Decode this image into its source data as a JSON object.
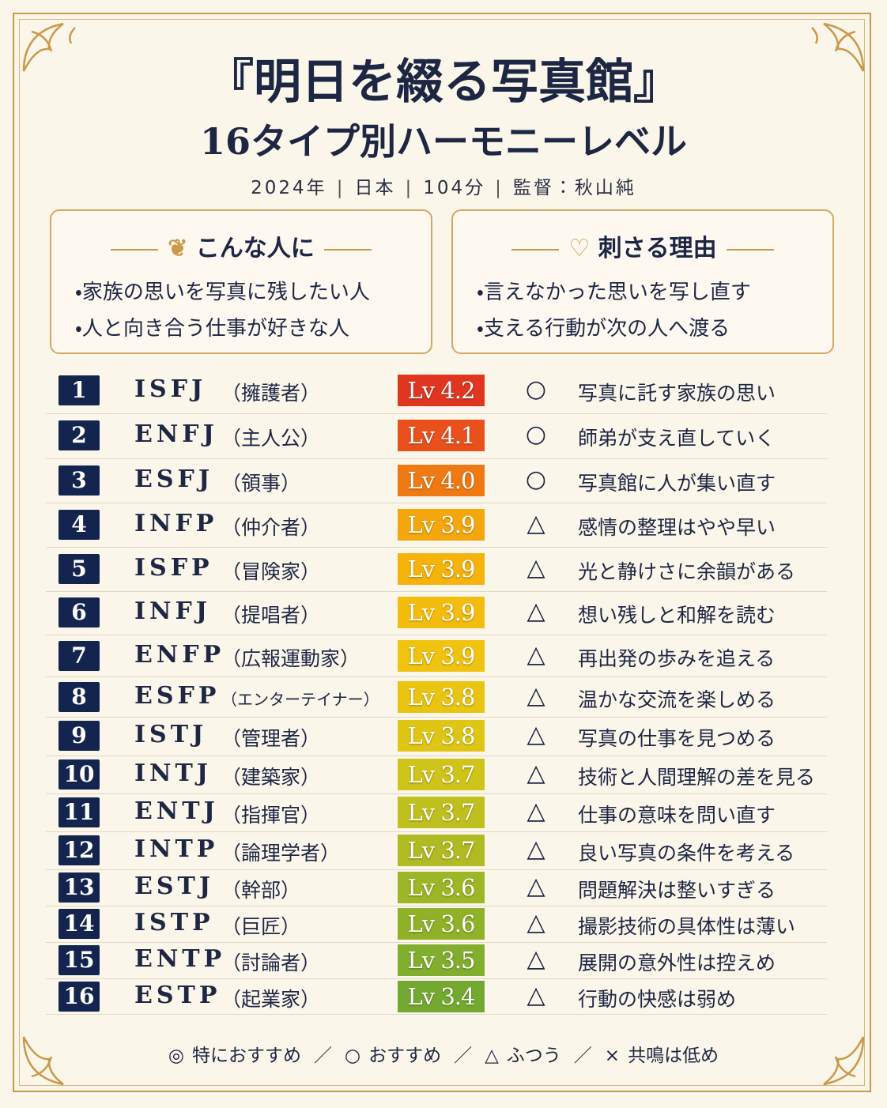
{
  "header": {
    "title": "『明日を綴る写真館』",
    "subtitle": "16タイプ別ハーモニーレベル",
    "meta": [
      "2024年",
      "日本",
      "104分",
      "監督：秋山純"
    ]
  },
  "boxes": [
    {
      "heading": "こんな人に",
      "items": [
        "家族の思いを写真に残したい人",
        "人と向き合う仕事が好きな人"
      ]
    },
    {
      "heading": "刺さる理由",
      "items": [
        "言えなかった思いを写し直す",
        "支える行動が次の人へ渡る"
      ]
    }
  ],
  "table": {
    "rows": [
      {
        "rank": 1,
        "type": "ISFJ",
        "role": "（擁護者）",
        "level": "Lv 4.2",
        "color": "#e0361f",
        "mark": "○",
        "comment": "写真に託す家族の思い"
      },
      {
        "rank": 2,
        "type": "ENFJ",
        "role": "（主人公）",
        "level": "Lv 4.1",
        "color": "#e9501c",
        "mark": "○",
        "comment": "師弟が支え直していく"
      },
      {
        "rank": 3,
        "type": "ESFJ",
        "role": "（領事）",
        "level": "Lv 4.0",
        "color": "#ef7a13",
        "mark": "○",
        "comment": "写真館に人が集い直す"
      },
      {
        "rank": 4,
        "type": "INFP",
        "role": "（仲介者）",
        "level": "Lv 3.9",
        "color": "#f4a70c",
        "mark": "△",
        "comment": "感情の整理はやや早い"
      },
      {
        "rank": 5,
        "type": "ISFP",
        "role": "（冒険家）",
        "level": "Lv 3.9",
        "color": "#f5b30b",
        "mark": "△",
        "comment": "光と静けさに余韻がある"
      },
      {
        "rank": 6,
        "type": "INFJ",
        "role": "（提唱者）",
        "level": "Lv 3.9",
        "color": "#f4bd0d",
        "mark": "△",
        "comment": "想い残しと和解を読む"
      },
      {
        "rank": 7,
        "type": "ENFP",
        "role": "（広報運動家）",
        "level": "Lv 3.9",
        "color": "#f0c30f",
        "mark": "△",
        "comment": "再出発の歩みを追える"
      },
      {
        "rank": 8,
        "type": "ESFP",
        "role": "（エンターテイナー）",
        "level": "Lv 3.8",
        "color": "#e9c512",
        "mark": "△",
        "comment": "温かな交流を楽しめる"
      },
      {
        "rank": 9,
        "type": "ISTJ",
        "role": "（管理者）",
        "level": "Lv 3.8",
        "color": "#dfc615",
        "mark": "△",
        "comment": "写真の仕事を見つめる"
      },
      {
        "rank": 10,
        "type": "INTJ",
        "role": "（建築家）",
        "level": "Lv 3.7",
        "color": "#cfc419",
        "mark": "△",
        "comment": "技術と人間理解の差を見る"
      },
      {
        "rank": 11,
        "type": "ENTJ",
        "role": "（指揮官）",
        "level": "Lv 3.7",
        "color": "#bfc01d",
        "mark": "△",
        "comment": "仕事の意味を問い直す"
      },
      {
        "rank": 12,
        "type": "INTP",
        "role": "（論理学者）",
        "level": "Lv 3.7",
        "color": "#afbb21",
        "mark": "△",
        "comment": "良い写真の条件を考える"
      },
      {
        "rank": 13,
        "type": "ESTJ",
        "role": "（幹部）",
        "level": "Lv 3.6",
        "color": "#9db625",
        "mark": "△",
        "comment": "問題解決は整いすぎる"
      },
      {
        "rank": 14,
        "type": "ISTP",
        "role": "（巨匠）",
        "level": "Lv 3.6",
        "color": "#8fb229",
        "mark": "△",
        "comment": "撮影技術の具体性は薄い"
      },
      {
        "rank": 15,
        "type": "ENTP",
        "role": "（討論者）",
        "level": "Lv 3.5",
        "color": "#81ae2d",
        "mark": "△",
        "comment": "展開の意外性は控えめ"
      },
      {
        "rank": 16,
        "type": "ESTP",
        "role": "（起業家）",
        "level": "Lv 3.4",
        "color": "#74a931",
        "mark": "△",
        "comment": "行動の快感は弱め"
      }
    ]
  },
  "legend": [
    {
      "symbol": "◎",
      "label": "特におすすめ"
    },
    {
      "symbol": "○",
      "label": "おすすめ"
    },
    {
      "symbol": "△",
      "label": "ふつう"
    },
    {
      "symbol": "×",
      "label": "共鳴は低め"
    }
  ]
}
